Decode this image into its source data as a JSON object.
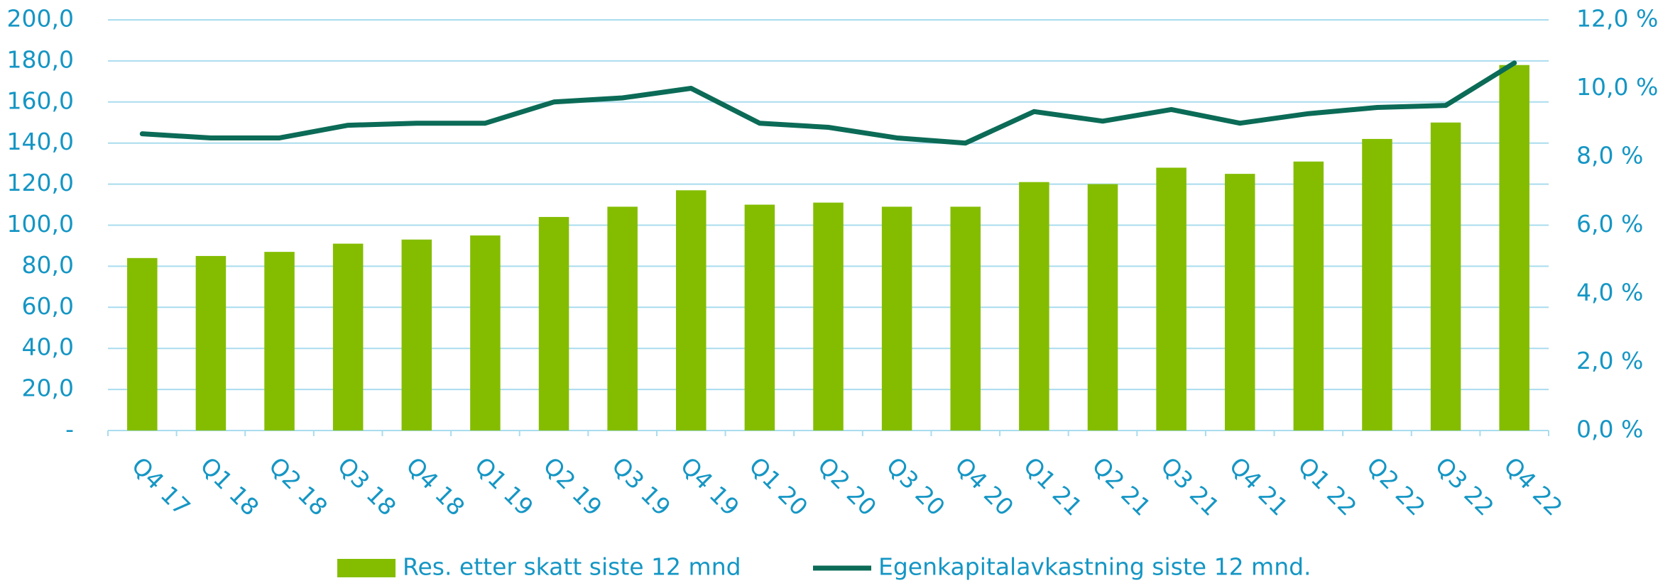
{
  "chart_data": {
    "type": "bar_line",
    "categories": [
      "Q4 17",
      "Q1 18",
      "Q2 18",
      "Q3 18",
      "Q4 18",
      "Q1 19",
      "Q2 19",
      "Q3 19",
      "Q4 19",
      "Q1 20",
      "Q2 20",
      "Q3 20",
      "Q4 20",
      "Q1 21",
      "Q2 21",
      "Q3 21",
      "Q4 21",
      "Q1 22",
      "Q2 22",
      "Q3 22",
      "Q4 22"
    ],
    "series": [
      {
        "name": "Res. etter skatt siste 12 mnd",
        "type": "bar",
        "color": "#84bd00",
        "values": [
          84,
          85,
          87,
          91,
          93,
          95,
          104,
          109,
          117,
          110,
          111,
          109,
          109,
          121,
          120,
          128,
          125,
          131,
          142,
          150,
          178
        ]
      },
      {
        "name": "Egenkapitalavkastning siste 12 mnd.",
        "type": "line",
        "axis": "y2",
        "color": "#0b6b57",
        "values": [
          8.67,
          8.55,
          8.55,
          8.92,
          8.98,
          8.98,
          9.6,
          9.72,
          10.0,
          8.98,
          8.86,
          8.55,
          8.4,
          9.32,
          9.04,
          9.38,
          8.98,
          9.26,
          9.44,
          9.5,
          10.74
        ]
      }
    ],
    "ylim": [
      0,
      200
    ],
    "yticks": [
      {
        "value": 0,
        "label": "-"
      },
      {
        "value": 20,
        "label": "20,0"
      },
      {
        "value": 40,
        "label": "40,0"
      },
      {
        "value": 60,
        "label": "60,0"
      },
      {
        "value": 80,
        "label": "80,0"
      },
      {
        "value": 100,
        "label": "100,0"
      },
      {
        "value": 120,
        "label": "120,0"
      },
      {
        "value": 140,
        "label": "140,0"
      },
      {
        "value": 160,
        "label": "160,0"
      },
      {
        "value": 180,
        "label": "180,0"
      },
      {
        "value": 200,
        "label": "200,0"
      }
    ],
    "y2lim": [
      0,
      12
    ],
    "y2ticks": [
      {
        "value": 0,
        "label": "0,0 %"
      },
      {
        "value": 2,
        "label": "2,0 %"
      },
      {
        "value": 4,
        "label": "4,0 %"
      },
      {
        "value": 6,
        "label": "6,0 %"
      },
      {
        "value": 8,
        "label": "8,0 %"
      },
      {
        "value": 10,
        "label": "10,0 %"
      },
      {
        "value": 12,
        "label": "12,0 %"
      }
    ],
    "grid": true,
    "legend": "bottom"
  }
}
